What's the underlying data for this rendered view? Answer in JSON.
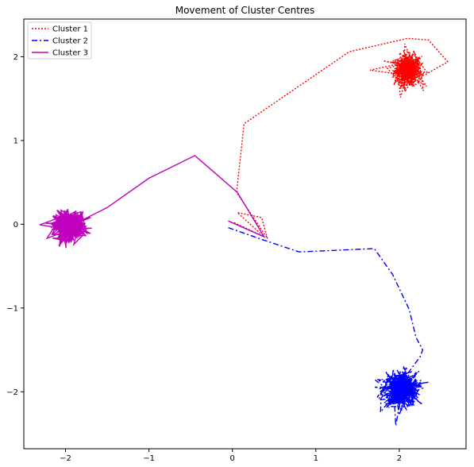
{
  "chart_data": {
    "type": "line",
    "title": "Movement of Cluster Centres",
    "xlabel": "",
    "ylabel": "",
    "xlim": [
      -2.5,
      2.8
    ],
    "ylim": [
      -2.68,
      2.45
    ],
    "xticks": [
      -2,
      -1,
      0,
      1,
      2
    ],
    "yticks": [
      -2,
      -1,
      0,
      1,
      2
    ],
    "grid": false,
    "legend_position": "top-left",
    "series": [
      {
        "name": "Cluster 1",
        "color": "#ff0000",
        "linestyle": "dotted",
        "path": [
          [
            0.02,
            0.02
          ],
          [
            0.38,
            -0.15
          ],
          [
            0.06,
            0.14
          ],
          [
            0.35,
            0.08
          ],
          [
            0.42,
            -0.17
          ],
          [
            0.05,
            0.38
          ],
          [
            0.14,
            1.2
          ],
          [
            1.4,
            2.06
          ],
          [
            2.1,
            2.22
          ],
          [
            2.35,
            2.2
          ],
          [
            2.58,
            1.94
          ],
          [
            2.3,
            1.78
          ],
          [
            2.1,
            1.78
          ],
          [
            1.65,
            1.84
          ]
        ],
        "jitter_center": [
          2.1,
          1.84
        ],
        "jitter_spread": [
          0.14,
          0.16
        ],
        "jitter_points": 400
      },
      {
        "name": "Cluster 2",
        "color": "#0000ff",
        "linestyle": "dashdot",
        "path": [
          [
            -0.05,
            -0.04
          ],
          [
            0.35,
            -0.18
          ],
          [
            0.8,
            -0.33
          ],
          [
            1.7,
            -0.29
          ],
          [
            1.92,
            -0.6
          ],
          [
            2.12,
            -1.02
          ],
          [
            2.2,
            -1.35
          ],
          [
            2.28,
            -1.5
          ],
          [
            2.25,
            -1.58
          ],
          [
            2.05,
            -1.85
          ]
        ],
        "jitter_center": [
          2.02,
          -1.97
        ],
        "jitter_spread": [
          0.18,
          0.18
        ],
        "jitter_points": 400
      },
      {
        "name": "Cluster 3",
        "color": "#bf00bf",
        "linestyle": "solid",
        "path": [
          [
            -0.05,
            0.04
          ],
          [
            0.38,
            -0.15
          ],
          [
            0.06,
            0.38
          ],
          [
            -0.45,
            0.82
          ],
          [
            -1.0,
            0.55
          ],
          [
            -1.5,
            0.2
          ],
          [
            -1.8,
            0.05
          ]
        ],
        "jitter_center": [
          -1.95,
          -0.02
        ],
        "jitter_spread": [
          0.16,
          0.14
        ],
        "jitter_points": 400
      }
    ]
  }
}
